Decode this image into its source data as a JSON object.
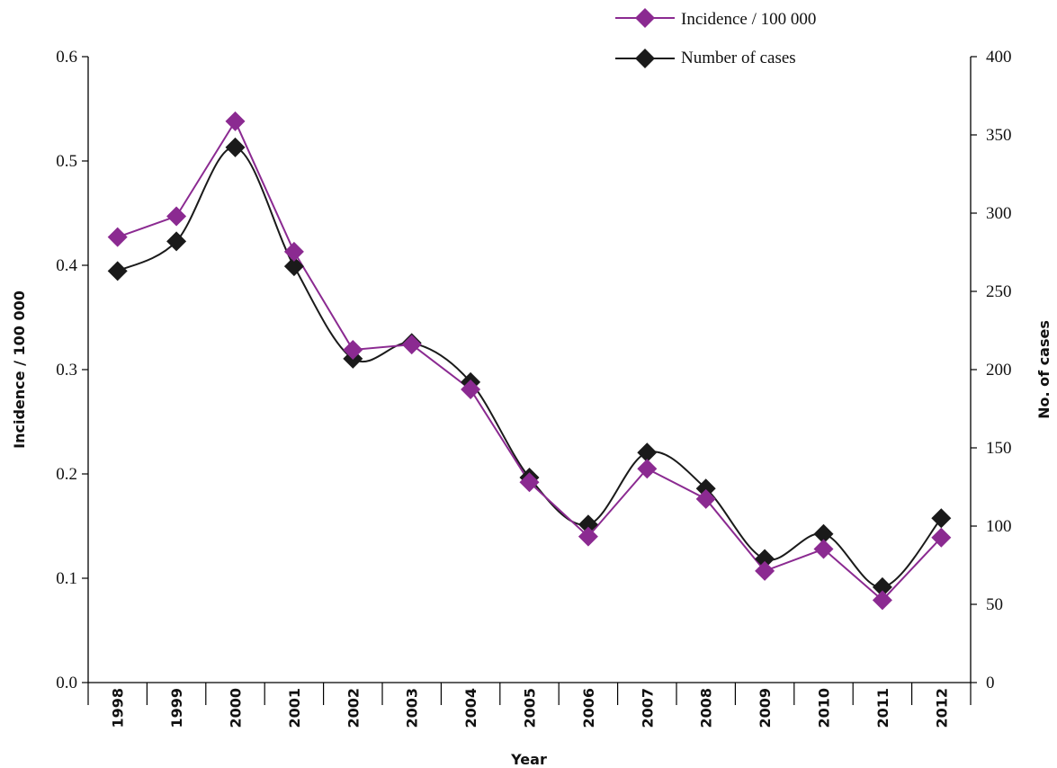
{
  "chart_data": {
    "type": "line",
    "categories": [
      "1998",
      "1999",
      "2000",
      "2001",
      "2002",
      "2003",
      "2004",
      "2005",
      "2006",
      "2007",
      "2008",
      "2009",
      "2010",
      "2011",
      "2012"
    ],
    "xlabel": "Year",
    "ylabel_left": "Incidence / 100 000",
    "ylabel_right": "No. of cases",
    "ylim_left": [
      0,
      0.6
    ],
    "ylim_right": [
      0,
      400
    ],
    "yticks_left": [
      "0.0",
      "0.1",
      "0.2",
      "0.3",
      "0.4",
      "0.5",
      "0.6"
    ],
    "yticks_right": [
      "0",
      "50",
      "100",
      "150",
      "200",
      "250",
      "300",
      "350",
      "400"
    ],
    "grid": false,
    "legend_position": "top-right",
    "series": [
      {
        "name": "Incidence / 100 000",
        "axis": "left",
        "color": "#8b2a91",
        "smooth": false,
        "values": [
          0.427,
          0.447,
          0.538,
          0.413,
          0.319,
          0.324,
          0.281,
          0.192,
          0.14,
          0.205,
          0.176,
          0.107,
          0.128,
          0.079,
          0.139
        ]
      },
      {
        "name": "Number of cases",
        "axis": "right",
        "color": "#1a1a1a",
        "smooth": true,
        "values": [
          263,
          282,
          342,
          266,
          207,
          217,
          192,
          131,
          101,
          147,
          124,
          79,
          95,
          61,
          105
        ]
      }
    ]
  }
}
